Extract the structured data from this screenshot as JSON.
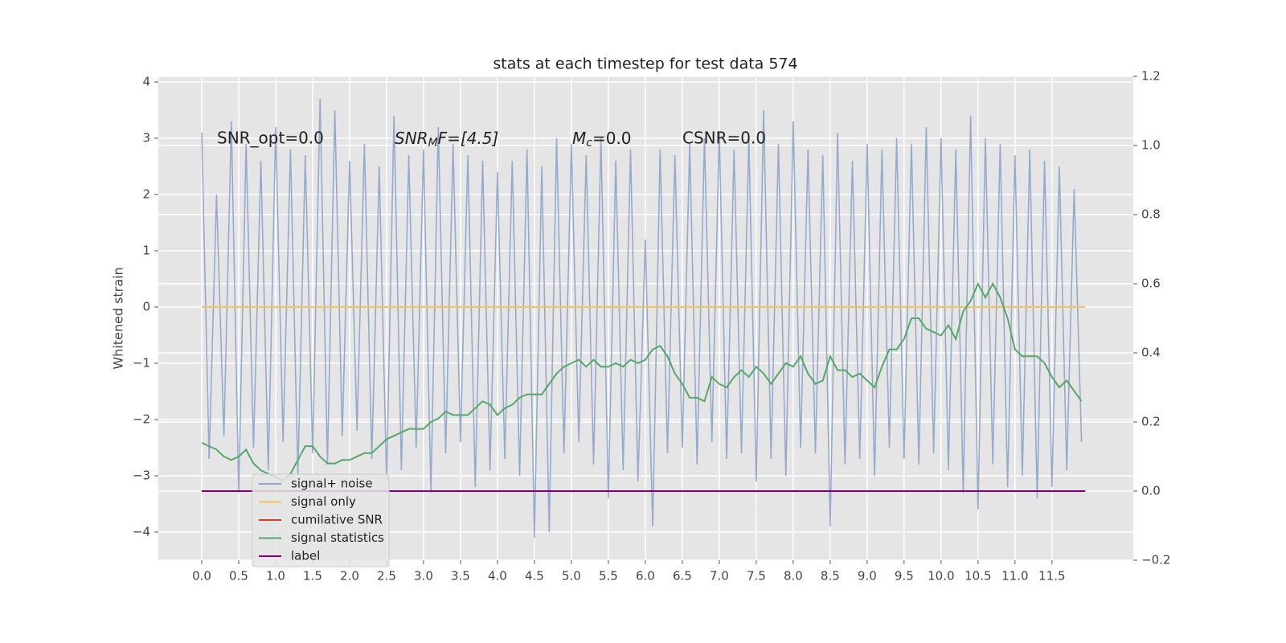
{
  "chart_data": {
    "type": "line",
    "title": "stats at each timestep for test data 574",
    "ylabel": "Whitened strain",
    "annotations": [
      {
        "text": "SNR_opt=0.0"
      },
      {
        "base": "SNR",
        "sub": "M",
        "rest": "F=[4.5]"
      },
      {
        "base": "M",
        "sub": "c",
        "rest": "=0.0"
      },
      {
        "text": "CSNR=0.0"
      }
    ],
    "x": [
      0,
      0.1,
      0.2,
      0.3,
      0.4,
      0.5,
      0.6,
      0.7,
      0.8,
      0.9,
      1,
      1.1,
      1.2,
      1.3,
      1.4,
      1.5,
      1.6,
      1.7,
      1.8,
      1.9,
      2,
      2.1,
      2.2,
      2.3,
      2.4,
      2.5,
      2.6,
      2.7,
      2.8,
      2.9,
      3,
      3.1,
      3.2,
      3.3,
      3.4,
      3.5,
      3.6,
      3.7,
      3.8,
      3.9,
      4,
      4.1,
      4.2,
      4.3,
      4.4,
      4.5,
      4.6,
      4.7,
      4.8,
      4.9,
      5,
      5.1,
      5.2,
      5.3,
      5.4,
      5.5,
      5.6,
      5.7,
      5.8,
      5.9,
      6,
      6.1,
      6.2,
      6.3,
      6.4,
      6.5,
      6.6,
      6.7,
      6.8,
      6.9,
      7,
      7.1,
      7.2,
      7.3,
      7.4,
      7.5,
      7.6,
      7.7,
      7.8,
      7.9,
      8,
      8.1,
      8.2,
      8.3,
      8.4,
      8.5,
      8.6,
      8.7,
      8.8,
      8.9,
      9,
      9.1,
      9.2,
      9.3,
      9.4,
      9.5,
      9.6,
      9.7,
      9.8,
      9.9,
      10,
      10.1,
      10.2,
      10.3,
      10.4,
      10.5,
      10.6,
      10.7,
      10.8,
      10.9,
      11,
      11.1,
      11.2,
      11.3,
      11.4,
      11.5,
      11.6,
      11.7,
      11.8,
      11.9
    ],
    "series": [
      {
        "name": "signal+ noise",
        "color": "#92a6cc",
        "axis": "y",
        "values": [
          3.1,
          -2.7,
          2.0,
          -2.3,
          3.3,
          -3.3,
          2.9,
          -2.5,
          2.6,
          -2.9,
          3.2,
          -2.4,
          2.8,
          -3.0,
          2.7,
          -2.6,
          3.7,
          -2.8,
          3.5,
          -2.3,
          2.6,
          -2.2,
          2.9,
          -2.7,
          2.5,
          -3.1,
          3.4,
          -2.9,
          2.7,
          -2.5,
          2.8,
          -3.3,
          3.2,
          -2.6,
          2.9,
          -2.4,
          2.7,
          -3.2,
          2.6,
          -2.9,
          2.4,
          -2.7,
          2.6,
          -3.0,
          2.8,
          -4.1,
          2.5,
          -4.0,
          3.0,
          -2.6,
          2.9,
          -2.4,
          2.7,
          -2.8,
          3.0,
          -3.4,
          2.6,
          -2.9,
          2.8,
          -3.1,
          1.2,
          -3.9,
          2.8,
          -2.6,
          2.7,
          -2.5,
          2.9,
          -2.8,
          3.0,
          -2.4,
          3.1,
          -2.7,
          2.8,
          -2.6,
          3.0,
          -3.1,
          3.5,
          -2.7,
          2.9,
          -3.0,
          3.3,
          -2.5,
          2.8,
          -2.6,
          2.7,
          -3.9,
          3.1,
          -2.8,
          2.6,
          -2.7,
          2.9,
          -3.0,
          2.8,
          -2.5,
          3.0,
          -2.7,
          2.9,
          -2.8,
          3.2,
          -2.6,
          3.0,
          -2.9,
          2.8,
          -3.3,
          3.4,
          -3.6,
          3.0,
          -2.8,
          2.9,
          -3.2,
          2.7,
          -3.0,
          2.8,
          -3.4,
          2.6,
          -3.2,
          2.5,
          -2.9,
          2.1,
          -2.4
        ]
      },
      {
        "name": "signal only",
        "color": "#f2c45a",
        "axis": "y",
        "x": [
          0,
          11.95
        ],
        "values": [
          0,
          0
        ]
      },
      {
        "name": "cumilative SNR",
        "color": "#d13b3b",
        "axis": "y2",
        "x": [
          0,
          11.95
        ],
        "values": [
          0,
          0
        ]
      },
      {
        "name": "signal statistics",
        "color": "#55a868",
        "axis": "y2",
        "values": [
          0.14,
          0.13,
          0.12,
          0.1,
          0.09,
          0.1,
          0.12,
          0.08,
          0.06,
          0.05,
          0.04,
          0.03,
          0.05,
          0.09,
          0.13,
          0.13,
          0.1,
          0.08,
          0.08,
          0.09,
          0.09,
          0.1,
          0.11,
          0.11,
          0.13,
          0.15,
          0.16,
          0.17,
          0.18,
          0.18,
          0.18,
          0.2,
          0.21,
          0.23,
          0.22,
          0.22,
          0.22,
          0.24,
          0.26,
          0.25,
          0.22,
          0.24,
          0.25,
          0.27,
          0.28,
          0.28,
          0.28,
          0.31,
          0.34,
          0.36,
          0.37,
          0.38,
          0.36,
          0.38,
          0.36,
          0.36,
          0.37,
          0.36,
          0.38,
          0.37,
          0.38,
          0.41,
          0.42,
          0.39,
          0.34,
          0.31,
          0.27,
          0.27,
          0.26,
          0.33,
          0.31,
          0.3,
          0.33,
          0.35,
          0.33,
          0.36,
          0.34,
          0.31,
          0.34,
          0.37,
          0.36,
          0.39,
          0.34,
          0.31,
          0.32,
          0.39,
          0.35,
          0.35,
          0.33,
          0.34,
          0.32,
          0.3,
          0.36,
          0.41,
          0.41,
          0.44,
          0.5,
          0.5,
          0.47,
          0.46,
          0.45,
          0.48,
          0.44,
          0.52,
          0.55,
          0.6,
          0.56,
          0.6,
          0.56,
          0.5,
          0.41,
          0.39,
          0.39,
          0.39,
          0.37,
          0.33,
          0.3,
          0.32,
          0.29,
          0.26
        ]
      },
      {
        "name": "label",
        "color": "#800080",
        "axis": "y2",
        "x": [
          0,
          11.95
        ],
        "values": [
          0,
          0
        ]
      }
    ],
    "xlim": [
      -0.587,
      12.6
    ],
    "xticks": [
      {
        "value": 0,
        "label": "0.0"
      },
      {
        "value": 0.5,
        "label": "0.5"
      },
      {
        "value": 1,
        "label": "1.0"
      },
      {
        "value": 1.5,
        "label": "1.5"
      },
      {
        "value": 2,
        "label": "2.0"
      },
      {
        "value": 2.5,
        "label": "2.5"
      },
      {
        "value": 3,
        "label": "3.0"
      },
      {
        "value": 3.5,
        "label": "3.5"
      },
      {
        "value": 4,
        "label": "4.0"
      },
      {
        "value": 4.5,
        "label": "4.5"
      },
      {
        "value": 5,
        "label": "5.0"
      },
      {
        "value": 5.5,
        "label": "5.5"
      },
      {
        "value": 6,
        "label": "6.0"
      },
      {
        "value": 6.5,
        "label": "6.5"
      },
      {
        "value": 7,
        "label": "7.0"
      },
      {
        "value": 7.5,
        "label": "7.5"
      },
      {
        "value": 8,
        "label": "8.0"
      },
      {
        "value": 8.5,
        "label": "8.5"
      },
      {
        "value": 9,
        "label": "9.0"
      },
      {
        "value": 9.5,
        "label": "9.5"
      },
      {
        "value": 10,
        "label": "10.0"
      },
      {
        "value": 10.5,
        "label": "10.5"
      },
      {
        "value": 11,
        "label": "11.0"
      },
      {
        "value": 11.5,
        "label": "11.5"
      }
    ],
    "ylim": [
      -4.5,
      4.1
    ],
    "yticks": [
      {
        "value": -4,
        "label": "−4"
      },
      {
        "value": -3,
        "label": "−3"
      },
      {
        "value": -2,
        "label": "−2"
      },
      {
        "value": -1,
        "label": "−1"
      },
      0,
      1,
      2,
      3,
      4
    ],
    "y2lim": [
      -0.2,
      1.2
    ],
    "y2ticks": [
      {
        "value": -0.2,
        "label": "−0.2"
      },
      {
        "value": 0,
        "label": "0.0"
      },
      {
        "value": 0.2,
        "label": "0.2"
      },
      {
        "value": 0.4,
        "label": "0.4"
      },
      {
        "value": 0.6,
        "label": "0.6"
      },
      {
        "value": 0.8,
        "label": "0.8"
      },
      {
        "value": 1,
        "label": "1.0"
      },
      {
        "value": 1.2,
        "label": "1.2"
      }
    ],
    "grid": true,
    "legend": "lower left"
  }
}
